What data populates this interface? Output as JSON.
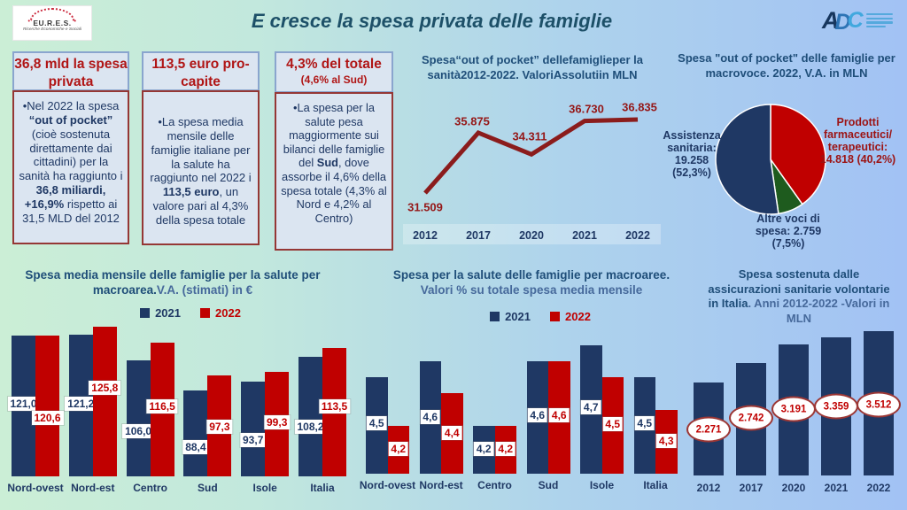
{
  "header": {
    "title": "E cresce la spesa privata delle famiglie",
    "eures_logo": {
      "name": "EU.R.E.S.",
      "subtitle": "Ricerche Economiche e Sociali"
    },
    "adoc_logo": {
      "letters": [
        "A",
        "D",
        "C"
      ]
    }
  },
  "info_boxes": [
    {
      "header": "36,8 mld la spesa privata",
      "header_sub": "",
      "body": [
        {
          "text": "•Nel 2022 la spesa ",
          "bold": false
        },
        {
          "text": "“out of pocket”",
          "bold": true
        },
        {
          "text": " (cioè sostenuta direttamente dai cittadini) per la sanità ha raggiunto i ",
          "bold": false
        },
        {
          "text": "36,8 miliardi, +16,9%",
          "bold": true
        },
        {
          "text": " rispetto ai 31,5 MLD del 2012",
          "bold": false
        }
      ]
    },
    {
      "header": "113,5 euro pro-capite",
      "header_sub": "",
      "body": [
        {
          "text": "•La spesa media mensile delle famiglie italiane per la salute ha raggiunto nel 2022 i ",
          "bold": false
        },
        {
          "text": "113,5 euro",
          "bold": true
        },
        {
          "text": ", un valore pari al 4,3% della spesa totale",
          "bold": false
        }
      ]
    },
    {
      "header": "4,3% del totale",
      "header_sub": "(4,6% al Sud)",
      "body": [
        {
          "text": "•La spesa per la salute pesa maggiormente sui bilanci delle famiglie del ",
          "bold": false
        },
        {
          "text": "Sud",
          "bold": true
        },
        {
          "text": ", dove assorbe il 4,6% della spesa totale (4,3% al Nord e 4,2% al Centro)",
          "bold": false
        }
      ]
    }
  ],
  "chart_data": [
    {
      "id": "oop_trend",
      "type": "line",
      "title_lines": [
        [
          {
            "text": "Spesa“out of pocket” dellefamiglieper la",
            "bold": true
          }
        ],
        [
          {
            "text": "sanità2012-2022. ValoriAssolutiin MLN",
            "bold": true
          }
        ]
      ],
      "x": [
        "2012",
        "2017",
        "2020",
        "2021",
        "2022"
      ],
      "values": [
        31509,
        35875,
        34311,
        36730,
        36835
      ],
      "labels": [
        "31.509",
        "35.875",
        "34.311",
        "36.730",
        "36.835"
      ],
      "line_color": "#8B1C1C",
      "ylim": [
        31000,
        37000
      ]
    },
    {
      "id": "oop_macrovoce",
      "type": "pie",
      "title_lines": [
        [
          {
            "text": "Spesa \"out of pocket\" delle famiglie per",
            "bold": true
          }
        ],
        [
          {
            "text": "macrovoce. 2022, V.A. in MLN",
            "bold": true
          }
        ]
      ],
      "slices": [
        {
          "label": "Prodotti farmaceutici/ terapeutici: 14.818 (40,2%)",
          "value": 14818,
          "pct": 40.2,
          "color": "#C00000",
          "label_color": "#9C1313"
        },
        {
          "label": "Altre voci di spesa: 2.759 (7,5%)",
          "value": 2759,
          "pct": 7.5,
          "color": "#1E5B1E",
          "label_color": "#1F3864"
        },
        {
          "label": "Assistenza sanitaria: 19.258 (52,3%)",
          "value": 19258,
          "pct": 52.3,
          "color": "#1F3864",
          "label_color": "#1F3864"
        }
      ]
    },
    {
      "id": "spesa_media_mensile",
      "type": "bar",
      "title_lines": [
        [
          {
            "text": "Spesa media mensile delle famiglie per la salute per",
            "bold": true
          }
        ],
        [
          {
            "text": "macroarea.",
            "bold": true
          },
          {
            "text": "V.A. (stimati) in €",
            "bold": false,
            "color": "#46699B"
          }
        ]
      ],
      "categories": [
        "Nord-ovest",
        "Nord-est",
        "Centro",
        "Sud",
        "Isole",
        "Italia"
      ],
      "series": [
        {
          "name": "2021",
          "color": "#1F3864",
          "values": [
            121.0,
            121.2,
            106.0,
            88.4,
            93.7,
            108.2
          ],
          "labels": [
            "121,0",
            "121,2",
            "106,0",
            "88,4",
            "93,7",
            "108,2"
          ]
        },
        {
          "name": "2022",
          "color": "#C00000",
          "values": [
            120.6,
            125.8,
            116.5,
            97.3,
            99.3,
            113.5
          ],
          "labels": [
            "120,6",
            "125,8",
            "116,5",
            "97,3",
            "99,3",
            "113,5"
          ]
        }
      ],
      "ylim": [
        38,
        126
      ]
    },
    {
      "id": "spesa_pct",
      "type": "bar",
      "title_lines": [
        [
          {
            "text": "Spesa per la salute delle famiglie per macroaree.",
            "bold": true
          }
        ],
        [
          {
            "text": "Valori % su totale spesa media mensile",
            "bold": false,
            "color": "#46699B"
          }
        ]
      ],
      "categories": [
        "Nord-ovest",
        "Nord-est",
        "Centro",
        "Sud",
        "Isole",
        "Italia"
      ],
      "series": [
        {
          "name": "2021",
          "color": "#1F3864",
          "values": [
            4.5,
            4.6,
            4.2,
            4.6,
            4.7,
            4.5
          ],
          "labels": [
            "4,5",
            "4,6",
            "4,2",
            "4,6",
            "4,7",
            "4,5"
          ]
        },
        {
          "name": "2022",
          "color": "#C00000",
          "values": [
            4.2,
            4.4,
            4.2,
            4.6,
            4.5,
            4.3
          ],
          "labels": [
            "4,2",
            "4,4",
            "4,2",
            "4,6",
            "4,5",
            "4,3"
          ]
        }
      ],
      "ylim": [
        3.9,
        4.7
      ]
    },
    {
      "id": "assicurazioni_volontarie",
      "type": "bar",
      "title_lines": [
        [
          {
            "text": "Spesa sostenuta dalle",
            "bold": true
          }
        ],
        [
          {
            "text": "assicurazioni sanitarie volontarie",
            "bold": true
          }
        ],
        [
          {
            "text": "in Italia",
            "bold": true
          },
          {
            "text": ". Anni 2012-2022 -Valori in",
            "bold": false,
            "color": "#46699B"
          }
        ],
        [
          {
            "text": "MLN",
            "bold": false,
            "color": "#46699B"
          }
        ]
      ],
      "categories": [
        "2012",
        "2017",
        "2020",
        "2021",
        "2022"
      ],
      "series": [
        {
          "name": "2012-2022",
          "color": "#1F3864",
          "values": [
            2271,
            2742,
            3191,
            3359,
            3512
          ],
          "labels": [
            "2.271",
            "2.742",
            "3.191",
            "3.359",
            "3.512"
          ]
        }
      ],
      "ylim": [
        0,
        3512
      ]
    }
  ]
}
